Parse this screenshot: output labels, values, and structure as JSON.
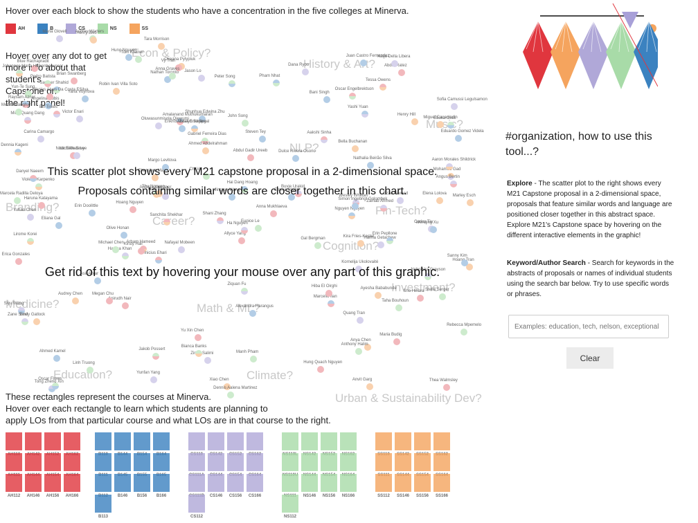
{
  "header": {
    "instruction": "Hover over each block to show the students who have a concentration in the five colleges at Minerva."
  },
  "legend": [
    {
      "code": "AH",
      "color": "#e0363e"
    },
    {
      "code": "B",
      "color": "#3b82c0"
    },
    {
      "code": "CS",
      "color": "#b0a8d8"
    },
    {
      "code": "NS",
      "color": "#a8dba8"
    },
    {
      "code": "SS",
      "color": "#f5a45e"
    }
  ],
  "dot_hint": [
    "Hover over any dot to get",
    "more info about that",
    "student's",
    "Capstone on",
    "the right panel!"
  ],
  "regions": [
    "Econ & Policy?",
    "History & Art?",
    "Music?",
    "NLP?",
    "Branding?",
    "Fin-Tech?",
    "Career?",
    "Cognition?",
    "Medicine?",
    "Investment?",
    "Math & ML?",
    "Education?",
    "Climate?",
    "Urban & Sustainability Dev?"
  ],
  "banners": {
    "line1": "This scatter plot shows every M21 capstone proposal in a 2-dimensional space.",
    "line2": "Proposals containing similar words are closer together in this chart.",
    "line3": "Get rid of this text by hovering your mouse over any part of this graphic."
  },
  "students": [
    "Allyce Yang",
    "Shani Zhang",
    "Gabriel Ferreira Dias",
    "John Song",
    "Anna Mukhlaeva",
    "Thea Walmsley",
    "Sofia Camussi Legulsamon",
    "Aakshi Sinha",
    "Olive Honan",
    "Nathalia Beirão Silva",
    "Miguel Cacanindin",
    "Hamza Khan",
    "Victor Enari",
    "Violetta Karpenko",
    "Kate Tanha",
    "Ezze Naveed",
    "Anirudh Nair",
    "Anya Chen",
    "Kornelija Ukolovaité",
    "Margo Levitova",
    "Marcello Ilan",
    "Nafayal Mobeen",
    "Marley Esch",
    "Peter Song",
    "Yun-Te Sung",
    "Henry Hill",
    "Blue Rachapradit",
    "Maria Budig",
    "Carina Camargo",
    "Amalanand Muthukumaran",
    "Audrey Warters",
    "Jason Lo",
    "Siyu Wang",
    "Stella Serger",
    "Okeana Pylypluk",
    "Angelina Rubis",
    "Emma Stiefel",
    "Carlos Tiu",
    "Nebraska Grayson",
    "Xiao Chen",
    "Ziquan Fu",
    "Hoang Tran",
    "Tong Zheng Xin",
    "Quang Tran",
    "Sho Hihara",
    "Dennis Aalena Martinez",
    "Bani Singh",
    "Tara Morrison",
    "Danyel Naeem",
    "Bella Buchanan",
    "Yu Xin Chen",
    "Zineb Salimi",
    "Erin Doolittle",
    "Abdul Gadir Ureeb",
    "Wesley Whelan",
    "Shunhua Edwina Zhu",
    "Audrey Chen",
    "Steven Tey",
    "Nguyen Nguyen",
    "Mohamed Gad",
    "Elif Tirkes",
    "Eduardo Gomez Videla",
    "Linh Truong",
    "Arham Hameed",
    "Dulce Rivera Osorio",
    "Pham Nhat",
    "Eunice Le",
    "Sameer Shahid",
    "Elena Lolova",
    "Ahmed Kamel",
    "Hung Nguyen",
    "Rebecca Mpemelo",
    "Haruna Katayama",
    "Oluwasunmisola Ojewumi",
    "Michael Chen",
    "Maria Glovell",
    "Erica Gonzales",
    "Antonia Kaestner",
    "Henry Biko",
    "Kira Fries-Kestel",
    "Vinicius Ehari",
    "Yunfan Yang",
    "Hiba El Oirghi",
    "Nour Elkhalawy",
    "Ha Nguyen",
    "Vy Tran",
    "Nathan Toronto",
    "Ahmed Abdelrahman",
    "Manh Pham",
    "Simon Ingebrigt Golombek",
    "Buvie Urakid",
    "Hai Dang Hoang",
    "Megan Chu",
    "Juan Castro Fernandez",
    "Marcela Radilla Deloya",
    "Yuhao Chen",
    "Zane Sand",
    "Oscar Flores",
    "Chenshuo Ma",
    "Chi Vu",
    "Hanna Getachew",
    "Dana Ryoo",
    "Eliana Gal",
    "Sanny Kim",
    "Ebuka Okeli",
    "Abdul Ratez",
    "Anthony Halim",
    "Raysam Aznar",
    "Minh Quang Dang",
    "Hoang Nguyen",
    "Lirome Korei",
    "Jakob Possert",
    "Michelle S Lee",
    "Anvit Garg",
    "Asir Abrar",
    "Abisayo Sadipe",
    "Dennia Kageni",
    "Yashi Yuan",
    "Erin Pepllone",
    "Taha Bouhoun",
    "Emily Gatlock",
    "Jingren Wang",
    "Enkhtsatsrali Enkhjargal",
    "Yana Voynova",
    "Anna Graves",
    "Nikolas Alves Da Costa ESilva",
    "Sanchita Shekhar",
    "Angus Bertin",
    "Wenqing Xu",
    "Pedro Batista",
    "Ayesha Bababunde",
    "Gal Bergman",
    "Bianca Banks",
    "Johannes Maria Halkenhaeusser",
    "Tom Kremer",
    "Hung Quach Nguyen",
    "Tessa Owens",
    "Zainab Ahmed",
    "Oscar Engelbrektson",
    "Menita Ranghar",
    "Thu Nguyen",
    "Alexandra Harangus",
    "Brian Swanberg",
    "Kirsty Hall",
    "Aaron Morales Shildrick",
    "Robin Ivan Villa Soto",
    "Katja Della Libera"
  ],
  "courses_text": [
    "These rectangles represent the courses at Minerva.",
    "Hover over each rectangle to learn which students are planning to",
    "apply LOs from that particular course and what LOs are in that course to the right."
  ],
  "course_groups": [
    {
      "college": "AH",
      "color": "#e0363e",
      "courses": [
        "AH110",
        "AH142",
        "AH152",
        "AH162",
        "AH111",
        "AH144",
        "AH154",
        "AH164",
        "AH112",
        "AH146",
        "AH156",
        "AH166"
      ]
    },
    {
      "college": "B",
      "color": "#3b82c0",
      "courses": [
        "B110",
        "B144",
        "B154",
        "B164",
        "B111",
        "B145",
        "B155",
        "B165",
        "B112",
        "B146",
        "B156",
        "B166",
        "B113"
      ]
    },
    {
      "college": "CS",
      "color": "#b0a8d8",
      "courses": [
        "CS110",
        "CS142",
        "CS152",
        "CS162",
        "CS111A",
        "CS144",
        "CS154",
        "CS164",
        "CS111B",
        "CS146",
        "CS156",
        "CS166",
        "CS112"
      ]
    },
    {
      "college": "NS",
      "color": "#a8dba8",
      "courses": [
        "NS110L",
        "NS142",
        "NS152",
        "NS162",
        "NS110U",
        "NS144",
        "NS154",
        "NS164",
        "NS111",
        "NS146",
        "NS156",
        "NS166",
        "NS112"
      ]
    },
    {
      "college": "SS",
      "color": "#f5a45e",
      "courses": [
        "SS110",
        "SS142",
        "SS152",
        "SS162",
        "SS111",
        "SS144",
        "SS154",
        "SS164",
        "SS112",
        "SS146",
        "SS156",
        "SS166"
      ]
    }
  ],
  "right_panel": {
    "title": "#organization, how to use this tool...?",
    "explore_label": "Explore",
    "explore_text": " - The scatter plot to the right shows every M21 Capstone proposal in a 2-dimensional space, proposals that feature similar words and language are positioned closer together in this abstract space. Explore M21's Capstone space by hovering on the different interactive elements in the graphic!",
    "search_label": "Keyword/Author Search",
    "search_text": " - Search for keywords in the abstracts of proposals or names of individual students using the search bar below. Try to use specific words or phrases.",
    "search_placeholder": "Examples: education, tech, nelson, exceptional",
    "clear_label": "Clear"
  }
}
